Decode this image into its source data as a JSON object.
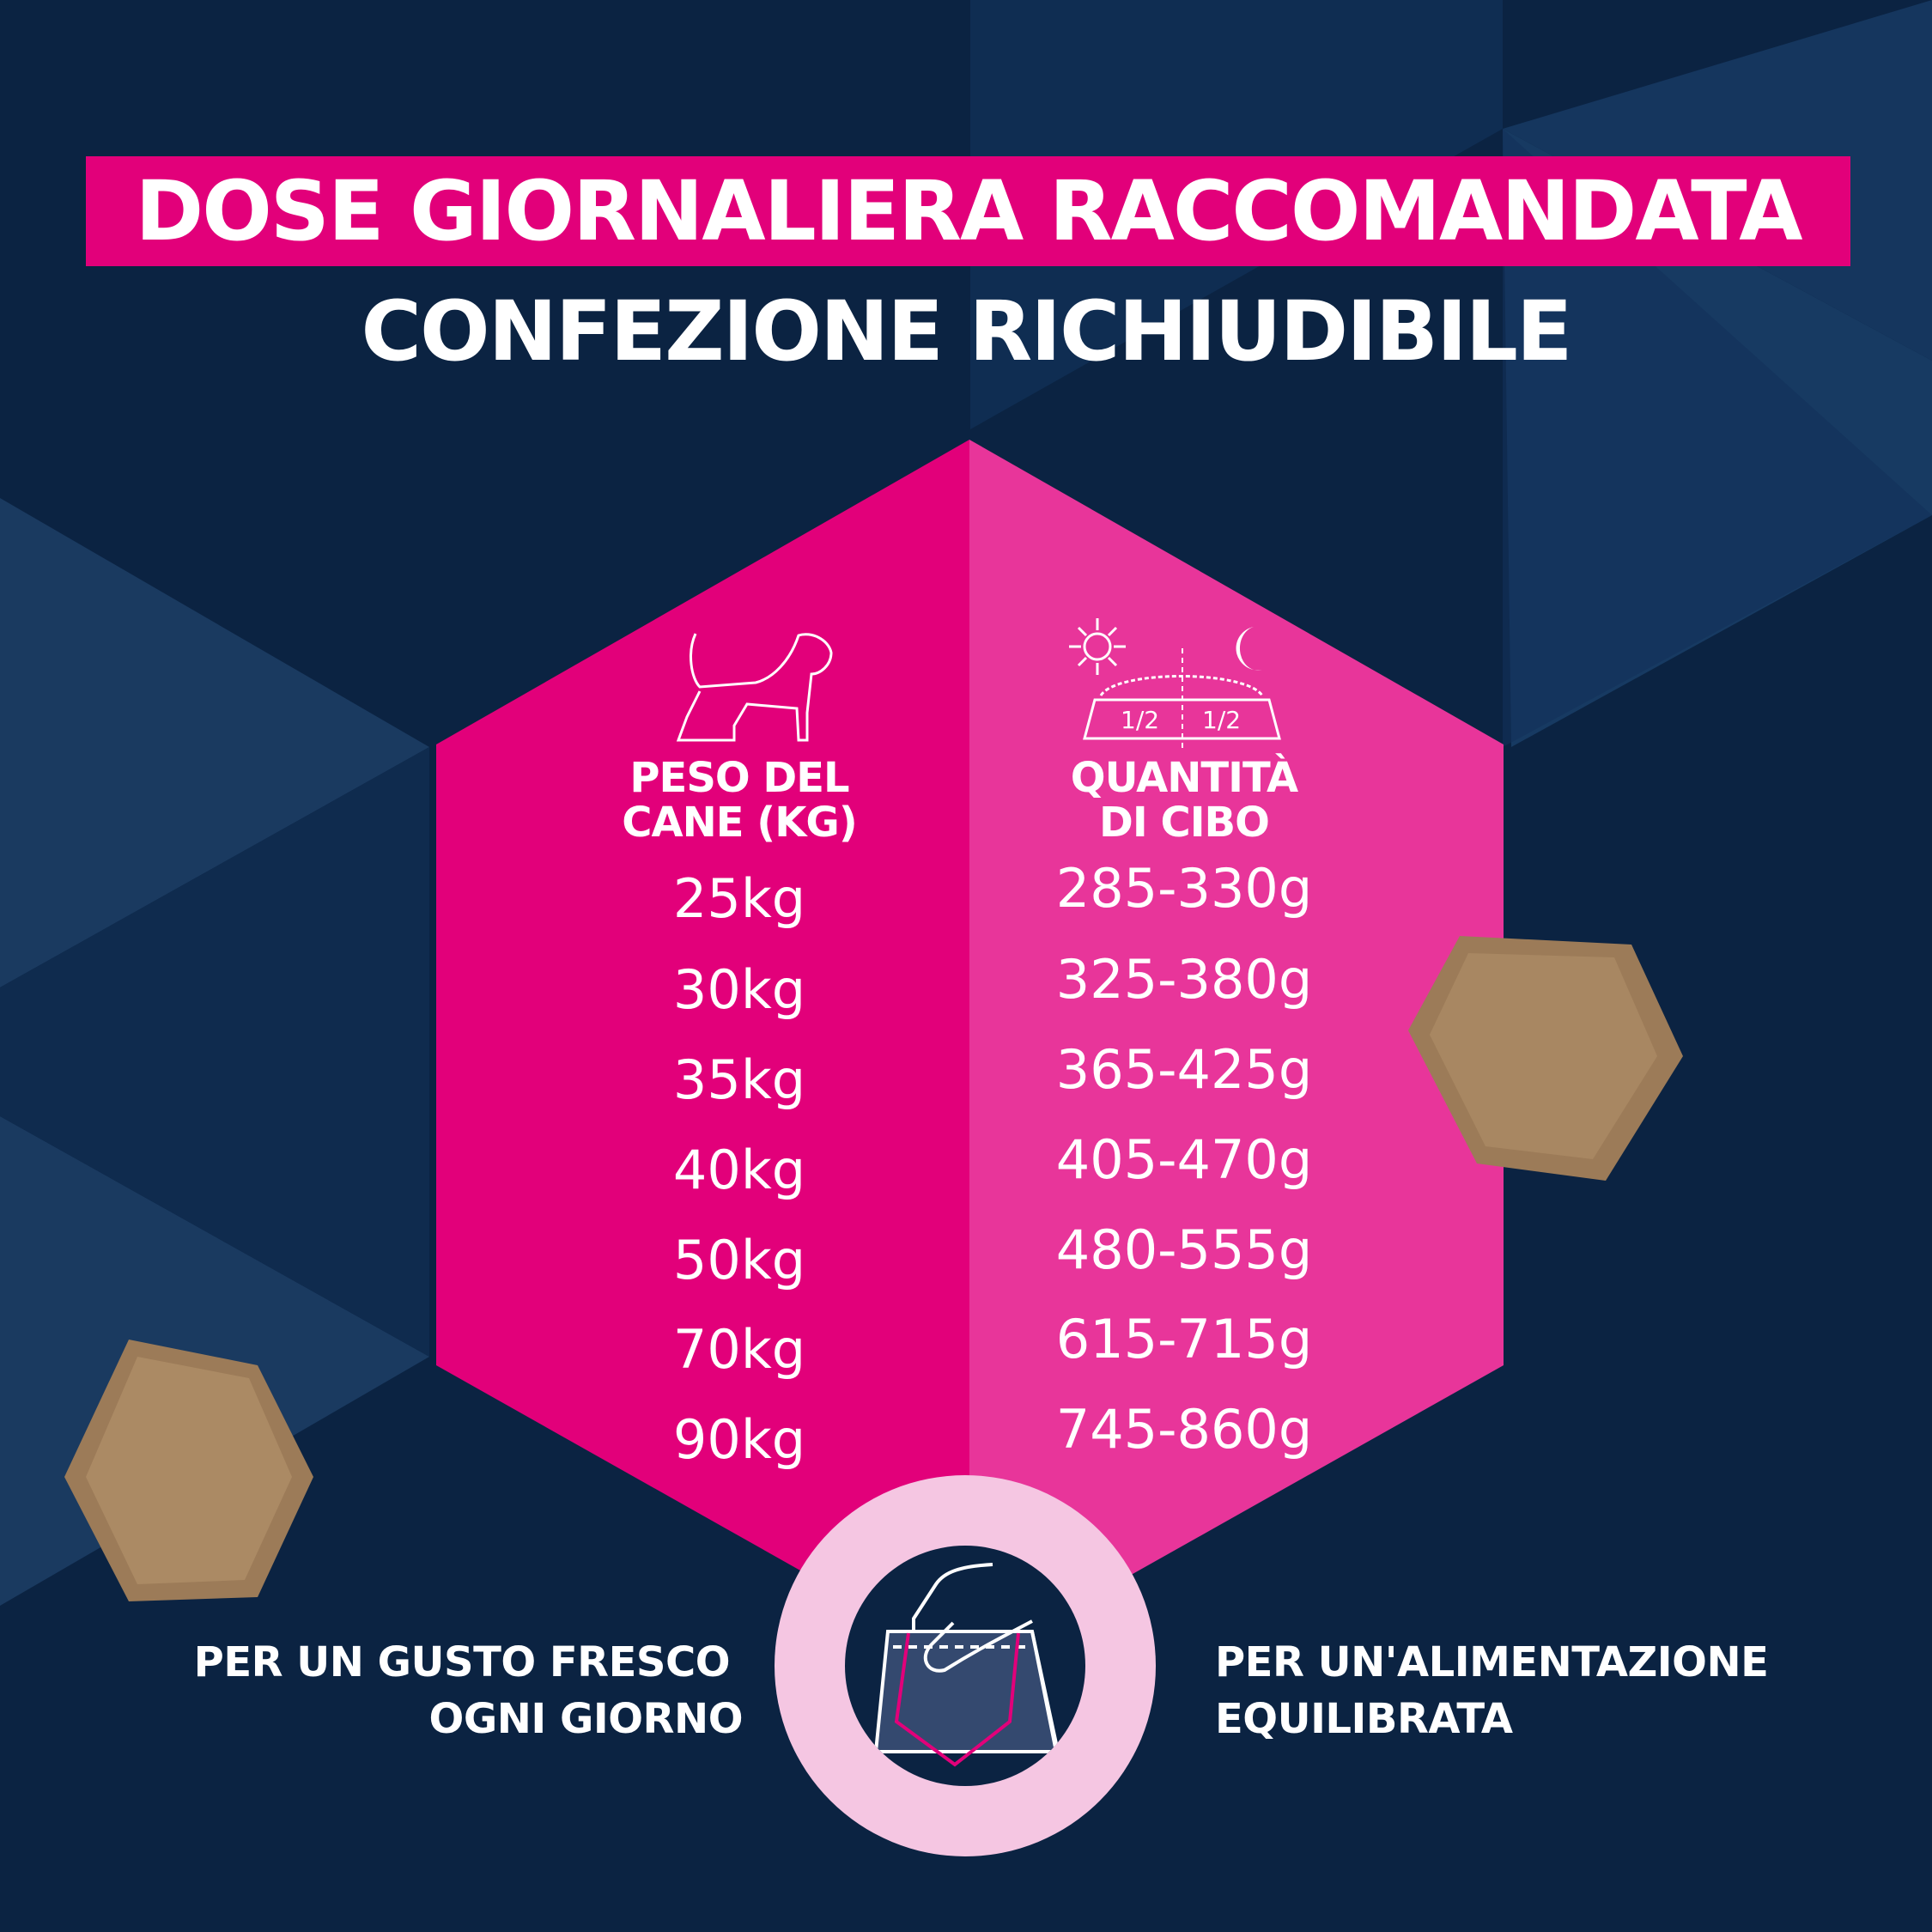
{
  "header": {
    "title": "DOSE GIORNALIERA RACCOMANDATA",
    "subtitle": "CONFEZIONE RICHIUDIBILE"
  },
  "table": {
    "weight_header": [
      "PESO DEL",
      "CANE (KG)"
    ],
    "food_header": [
      "QUANTITÀ",
      "DI CIBO"
    ],
    "bowl_labels": [
      "1/2",
      "1/2"
    ],
    "rows": [
      {
        "weight": "25kg",
        "amount": "285-330g"
      },
      {
        "weight": "30kg",
        "amount": "325-380g"
      },
      {
        "weight": "35kg",
        "amount": "365-425g"
      },
      {
        "weight": "40kg",
        "amount": "405-470g"
      },
      {
        "weight": "50kg",
        "amount": "480-555g"
      },
      {
        "weight": "70kg",
        "amount": "615-715g"
      },
      {
        "weight": "90kg",
        "amount": "745-860g"
      }
    ]
  },
  "footer": {
    "left": [
      "PER UN GUSTO FRESCO",
      "OGNI GIORNO"
    ],
    "right": [
      "PER UN'ALIMENTAZIONE",
      "EQUILIBRATA"
    ]
  },
  "icons": [
    "dog-icon",
    "sun-icon",
    "moon-icon",
    "food-bowl-icon",
    "resealable-bag-icon",
    "kibble-image"
  ],
  "colors": {
    "background": "#0b2342",
    "magenta": "#e2007a",
    "pink": "#e8359a",
    "light_pink": "#f5c6e2"
  }
}
